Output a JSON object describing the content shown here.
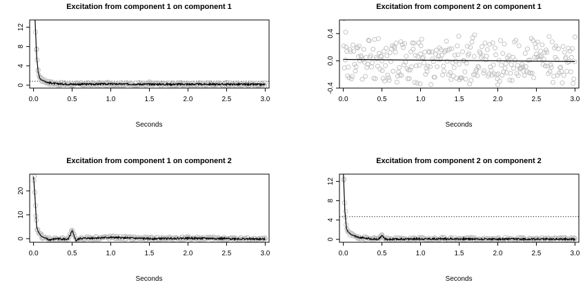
{
  "chart_data": [
    {
      "type": "scatter",
      "title": "Excitation from component 1 on component 1",
      "xlabel": "Seconds",
      "ylabel": "",
      "xlim": [
        -0.05,
        3.05
      ],
      "ylim": [
        -0.6,
        13.5
      ],
      "xticks": [
        "0.0",
        "0.5",
        "1.0",
        "1.5",
        "2.0",
        "2.5",
        "3.0"
      ],
      "yticks": [
        "0",
        "4",
        "8",
        "12"
      ],
      "baseline": 0.8,
      "baseline_style": "dotted",
      "grid": false,
      "series": [
        {
          "kind": "points",
          "x": [
            0.02,
            0.04,
            0.06,
            0.08,
            0.1,
            0.15,
            0.2,
            0.3,
            0.5,
            1.0,
            1.5,
            2.0,
            2.5,
            3.0
          ],
          "y": [
            14.5,
            7.5,
            3.2,
            1.8,
            1.5,
            1.1,
            0.8,
            0.5,
            0.3,
            0.4,
            0.7,
            0.4,
            0.6,
            0.5
          ]
        },
        {
          "kind": "line",
          "x": [
            0.0,
            0.02,
            0.04,
            0.06,
            0.08,
            0.1,
            0.15,
            0.2,
            0.3,
            0.5,
            1.0,
            1.5,
            2.0,
            2.5,
            3.0
          ],
          "y": [
            16,
            13.5,
            6,
            2.7,
            1.5,
            1.1,
            0.8,
            0.5,
            0.3,
            0.2,
            0.25,
            0.2,
            0.2,
            0.2,
            0.15
          ]
        }
      ]
    },
    {
      "type": "scatter",
      "title": "Excitation from component 2 on component 1",
      "xlabel": "Seconds",
      "ylabel": "",
      "xlim": [
        -0.05,
        3.05
      ],
      "ylim": [
        -0.4,
        0.6
      ],
      "xticks": [
        "0.0",
        "0.5",
        "1.0",
        "1.5",
        "2.0",
        "2.5",
        "3.0"
      ],
      "yticks": [
        "-0.4",
        "0.0",
        "0.4"
      ],
      "grid": false,
      "series": [
        {
          "kind": "points",
          "x": [
            0.01,
            0.03,
            0.5,
            1.0,
            1.5,
            1.7,
            2.0,
            2.5,
            3.0
          ],
          "y": [
            0.62,
            0.42,
            0.0,
            0.1,
            -0.05,
            0.38,
            -0.35,
            0.1,
            0.35
          ]
        },
        {
          "kind": "line",
          "x": [
            0.0,
            3.0
          ],
          "y": [
            0.02,
            -0.01
          ]
        }
      ]
    },
    {
      "type": "scatter",
      "title": "Excitation from component 1 on component 2",
      "xlabel": "Seconds",
      "ylabel": "",
      "xlim": [
        -0.05,
        3.05
      ],
      "ylim": [
        -1.5,
        27
      ],
      "xticks": [
        "0.0",
        "0.5",
        "1.0",
        "1.5",
        "2.0",
        "2.5",
        "3.0"
      ],
      "yticks": [
        "0",
        "10",
        "20"
      ],
      "grid": false,
      "series": [
        {
          "kind": "points",
          "x": [
            0.01,
            0.03,
            0.05,
            0.1,
            0.2,
            0.5,
            1.0,
            1.5,
            2.0,
            2.5,
            3.0
          ],
          "y": [
            26,
            9.5,
            3.5,
            2.0,
            0.5,
            3.5,
            0.5,
            0.0,
            0.3,
            0.1,
            0.0
          ]
        },
        {
          "kind": "line",
          "x": [
            0.0,
            0.02,
            0.04,
            0.06,
            0.1,
            0.15,
            0.2,
            0.3,
            0.45,
            0.5,
            0.55,
            0.6,
            1.0,
            1.5,
            2.0,
            2.5,
            3.0
          ],
          "y": [
            26,
            17,
            5,
            3.0,
            1.0,
            0.2,
            -0.5,
            0.0,
            -0.3,
            3.3,
            -0.8,
            0.1,
            0.5,
            0.0,
            0.2,
            0.0,
            -0.2
          ]
        }
      ]
    },
    {
      "type": "scatter",
      "title": "Excitation from component 2 on component 2",
      "xlabel": "Seconds",
      "ylabel": "",
      "xlim": [
        -0.05,
        3.05
      ],
      "ylim": [
        -0.6,
        13.5
      ],
      "xticks": [
        "0.0",
        "0.5",
        "1.0",
        "1.5",
        "2.0",
        "2.5",
        "3.0"
      ],
      "yticks": [
        "0",
        "4",
        "8",
        "12"
      ],
      "baseline": 4.7,
      "baseline_style": "dotted",
      "grid": false,
      "series": [
        {
          "kind": "points",
          "x": [
            0.01,
            0.03,
            0.05,
            0.1,
            0.2,
            0.5,
            1.0,
            1.5,
            2.0,
            2.5,
            3.0
          ],
          "y": [
            12.5,
            5.8,
            2.0,
            1.2,
            0.6,
            0.8,
            0.4,
            0.2,
            0.2,
            0.1,
            0.1
          ]
        },
        {
          "kind": "line",
          "x": [
            0.0,
            0.02,
            0.04,
            0.06,
            0.1,
            0.2,
            0.3,
            0.45,
            0.5,
            0.55,
            1.0,
            1.5,
            2.0,
            2.5,
            3.0
          ],
          "y": [
            14,
            6,
            2.3,
            1.6,
            1.0,
            0.4,
            0.2,
            0.0,
            0.7,
            0.0,
            0.1,
            0.1,
            0.05,
            0.05,
            0.05
          ]
        }
      ]
    }
  ]
}
